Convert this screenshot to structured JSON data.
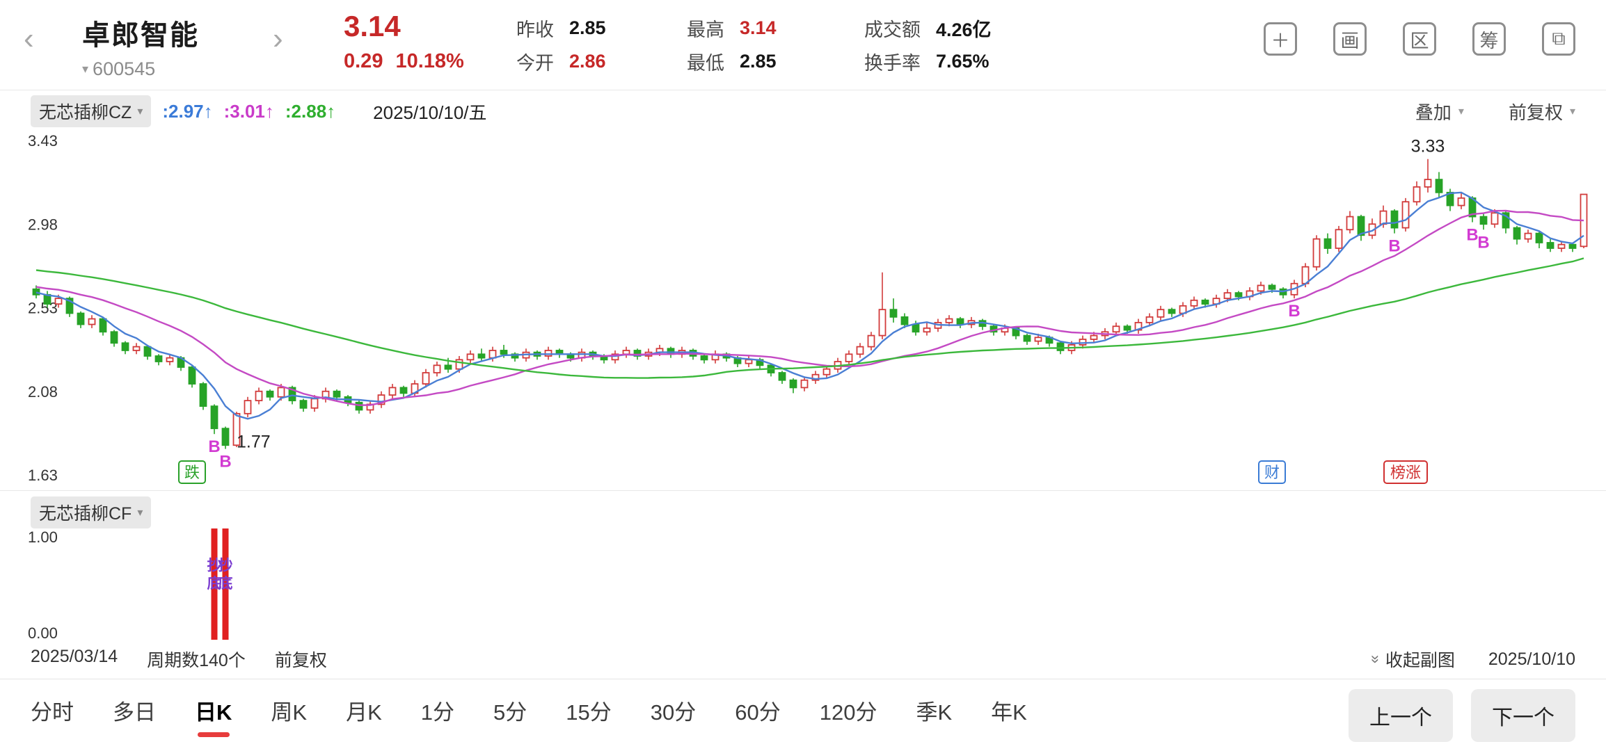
{
  "header": {
    "back_icon": "‹",
    "forward_icon": "›",
    "stock_name": "卓郎智能",
    "code_caret": "▾",
    "stock_code": "600545",
    "price": "3.14",
    "change": "0.29",
    "change_pct": "10.18%",
    "stats": [
      {
        "label": "昨收",
        "value": "2.85",
        "cls": "dark"
      },
      {
        "label": "今开",
        "value": "2.86",
        "cls": "red"
      },
      {
        "label": "最高",
        "value": "3.14",
        "cls": "red"
      },
      {
        "label": "最低",
        "value": "2.85",
        "cls": "dark"
      },
      {
        "label": "成交额",
        "value": "4.26亿",
        "cls": "dark"
      },
      {
        "label": "换手率",
        "value": "7.65%",
        "cls": "dark"
      }
    ],
    "tools": [
      {
        "name": "add",
        "glyph": "＋"
      },
      {
        "name": "draw",
        "glyph": "画"
      },
      {
        "name": "region",
        "glyph": "区"
      },
      {
        "name": "chips",
        "glyph": "筹"
      },
      {
        "name": "float-window",
        "glyph": "⧉"
      }
    ]
  },
  "indicator_bar": {
    "name": "无芯插柳CZ",
    "caret": "▾",
    "values": [
      {
        "text": ":2.97",
        "arrow": "↑",
        "color": "#3b7bd8"
      },
      {
        "text": ":3.01",
        "arrow": "↑",
        "color": "#c93bc9"
      },
      {
        "text": ":2.88",
        "arrow": "↑",
        "color": "#2fae2f"
      }
    ],
    "date": "2025/10/10/五",
    "overlay": "叠加",
    "adjust": "前复权"
  },
  "chart_data": {
    "type": "candlestick",
    "title": "无芯插柳CZ 主图 (日K)",
    "y_ticks": [
      "3.43",
      "2.98",
      "2.53",
      "2.08",
      "1.63"
    ],
    "y_max": 3.43,
    "y_min": 1.63,
    "period_count": 140,
    "date_start": "2025/03/14",
    "date_end": "2025/10/10",
    "up_color": "#d23b3b",
    "down_color": "#27a327",
    "ma_lines": [
      {
        "name": "ma-fast",
        "color": "#4a7fd4",
        "window": 5
      },
      {
        "name": "ma-mid",
        "color": "#c44ac4",
        "window": 15
      },
      {
        "name": "ma-slow",
        "color": "#3cb83c",
        "window": 45
      }
    ],
    "candles": [
      [
        2.63,
        2.65,
        2.58,
        2.6
      ],
      [
        2.6,
        2.62,
        2.53,
        2.55
      ],
      [
        2.55,
        2.6,
        2.53,
        2.58
      ],
      [
        2.58,
        2.59,
        2.48,
        2.5
      ],
      [
        2.5,
        2.51,
        2.42,
        2.44
      ],
      [
        2.44,
        2.49,
        2.42,
        2.47
      ],
      [
        2.47,
        2.48,
        2.38,
        2.4
      ],
      [
        2.4,
        2.41,
        2.32,
        2.34
      ],
      [
        2.34,
        2.35,
        2.28,
        2.3
      ],
      [
        2.3,
        2.34,
        2.28,
        2.32
      ],
      [
        2.32,
        2.33,
        2.25,
        2.27
      ],
      [
        2.27,
        2.28,
        2.22,
        2.24
      ],
      [
        2.24,
        2.28,
        2.22,
        2.26
      ],
      [
        2.26,
        2.27,
        2.19,
        2.21
      ],
      [
        2.21,
        2.22,
        2.1,
        2.12
      ],
      [
        2.12,
        2.13,
        1.98,
        2.0
      ],
      [
        2.0,
        2.01,
        1.85,
        1.88
      ],
      [
        1.88,
        1.89,
        1.77,
        1.79
      ],
      [
        1.79,
        1.97,
        1.78,
        1.96
      ],
      [
        1.96,
        2.05,
        1.94,
        2.03
      ],
      [
        2.03,
        2.1,
        2.01,
        2.08
      ],
      [
        2.08,
        2.09,
        2.03,
        2.05
      ],
      [
        2.05,
        2.12,
        2.03,
        2.1
      ],
      [
        2.1,
        2.11,
        2.01,
        2.03
      ],
      [
        2.03,
        2.04,
        1.97,
        1.99
      ],
      [
        1.99,
        2.06,
        1.97,
        2.04
      ],
      [
        2.04,
        2.1,
        2.02,
        2.08
      ],
      [
        2.08,
        2.09,
        2.03,
        2.05
      ],
      [
        2.05,
        2.06,
        2.0,
        2.02
      ],
      [
        2.02,
        2.03,
        1.96,
        1.98
      ],
      [
        1.98,
        2.03,
        1.96,
        2.01
      ],
      [
        2.01,
        2.08,
        1.99,
        2.06
      ],
      [
        2.06,
        2.12,
        2.04,
        2.1
      ],
      [
        2.1,
        2.11,
        2.05,
        2.07
      ],
      [
        2.07,
        2.14,
        2.05,
        2.12
      ],
      [
        2.12,
        2.2,
        2.1,
        2.18
      ],
      [
        2.18,
        2.24,
        2.16,
        2.22
      ],
      [
        2.22,
        2.26,
        2.18,
        2.2
      ],
      [
        2.2,
        2.27,
        2.18,
        2.25
      ],
      [
        2.25,
        2.3,
        2.23,
        2.28
      ],
      [
        2.28,
        2.31,
        2.24,
        2.26
      ],
      [
        2.26,
        2.32,
        2.24,
        2.3
      ],
      [
        2.3,
        2.33,
        2.26,
        2.28
      ],
      [
        2.28,
        2.29,
        2.24,
        2.26
      ],
      [
        2.26,
        2.31,
        2.24,
        2.29
      ],
      [
        2.29,
        2.3,
        2.25,
        2.27
      ],
      [
        2.27,
        2.32,
        2.25,
        2.3
      ],
      [
        2.3,
        2.31,
        2.26,
        2.28
      ],
      [
        2.28,
        2.29,
        2.24,
        2.26
      ],
      [
        2.26,
        2.31,
        2.24,
        2.29
      ],
      [
        2.29,
        2.3,
        2.25,
        2.27
      ],
      [
        2.27,
        2.28,
        2.23,
        2.25
      ],
      [
        2.25,
        2.3,
        2.23,
        2.28
      ],
      [
        2.28,
        2.32,
        2.26,
        2.3
      ],
      [
        2.3,
        2.31,
        2.25,
        2.27
      ],
      [
        2.27,
        2.31,
        2.25,
        2.29
      ],
      [
        2.29,
        2.33,
        2.27,
        2.31
      ],
      [
        2.31,
        2.32,
        2.26,
        2.28
      ],
      [
        2.28,
        2.32,
        2.26,
        2.3
      ],
      [
        2.3,
        2.31,
        2.25,
        2.27
      ],
      [
        2.27,
        2.28,
        2.23,
        2.25
      ],
      [
        2.25,
        2.3,
        2.23,
        2.28
      ],
      [
        2.28,
        2.29,
        2.24,
        2.26
      ],
      [
        2.26,
        2.27,
        2.21,
        2.23
      ],
      [
        2.23,
        2.27,
        2.21,
        2.25
      ],
      [
        2.25,
        2.26,
        2.2,
        2.22
      ],
      [
        2.22,
        2.23,
        2.16,
        2.18
      ],
      [
        2.18,
        2.19,
        2.12,
        2.14
      ],
      [
        2.14,
        2.15,
        2.07,
        2.1
      ],
      [
        2.1,
        2.16,
        2.08,
        2.14
      ],
      [
        2.14,
        2.19,
        2.12,
        2.17
      ],
      [
        2.17,
        2.22,
        2.15,
        2.2
      ],
      [
        2.2,
        2.26,
        2.18,
        2.24
      ],
      [
        2.24,
        2.3,
        2.22,
        2.28
      ],
      [
        2.28,
        2.34,
        2.26,
        2.32
      ],
      [
        2.32,
        2.4,
        2.3,
        2.38
      ],
      [
        2.38,
        2.72,
        2.36,
        2.52
      ],
      [
        2.52,
        2.58,
        2.45,
        2.48
      ],
      [
        2.48,
        2.5,
        2.42,
        2.44
      ],
      [
        2.44,
        2.46,
        2.38,
        2.4
      ],
      [
        2.4,
        2.45,
        2.38,
        2.42
      ],
      [
        2.42,
        2.47,
        2.4,
        2.45
      ],
      [
        2.45,
        2.49,
        2.43,
        2.47
      ],
      [
        2.47,
        2.48,
        2.42,
        2.44
      ],
      [
        2.44,
        2.48,
        2.42,
        2.46
      ],
      [
        2.46,
        2.47,
        2.41,
        2.43
      ],
      [
        2.43,
        2.44,
        2.38,
        2.4
      ],
      [
        2.4,
        2.44,
        2.38,
        2.42
      ],
      [
        2.42,
        2.43,
        2.36,
        2.38
      ],
      [
        2.38,
        2.39,
        2.33,
        2.35
      ],
      [
        2.35,
        2.39,
        2.33,
        2.37
      ],
      [
        2.37,
        2.38,
        2.32,
        2.34
      ],
      [
        2.34,
        2.35,
        2.28,
        2.3
      ],
      [
        2.3,
        2.35,
        2.28,
        2.33
      ],
      [
        2.33,
        2.38,
        2.31,
        2.36
      ],
      [
        2.36,
        2.4,
        2.34,
        2.38
      ],
      [
        2.38,
        2.42,
        2.36,
        2.4
      ],
      [
        2.4,
        2.45,
        2.38,
        2.43
      ],
      [
        2.43,
        2.44,
        2.39,
        2.41
      ],
      [
        2.41,
        2.47,
        2.39,
        2.45
      ],
      [
        2.45,
        2.5,
        2.43,
        2.48
      ],
      [
        2.48,
        2.54,
        2.46,
        2.52
      ],
      [
        2.52,
        2.53,
        2.48,
        2.5
      ],
      [
        2.5,
        2.56,
        2.48,
        2.54
      ],
      [
        2.54,
        2.59,
        2.52,
        2.57
      ],
      [
        2.57,
        2.58,
        2.53,
        2.55
      ],
      [
        2.55,
        2.6,
        2.53,
        2.58
      ],
      [
        2.58,
        2.63,
        2.56,
        2.61
      ],
      [
        2.61,
        2.62,
        2.57,
        2.59
      ],
      [
        2.59,
        2.64,
        2.57,
        2.62
      ],
      [
        2.62,
        2.67,
        2.6,
        2.65
      ],
      [
        2.65,
        2.66,
        2.61,
        2.63
      ],
      [
        2.63,
        2.64,
        2.58,
        2.6
      ],
      [
        2.6,
        2.68,
        2.58,
        2.66
      ],
      [
        2.66,
        2.77,
        2.64,
        2.75
      ],
      [
        2.75,
        2.92,
        2.73,
        2.9
      ],
      [
        2.9,
        2.93,
        2.82,
        2.85
      ],
      [
        2.85,
        2.97,
        2.83,
        2.95
      ],
      [
        2.95,
        3.05,
        2.93,
        3.02
      ],
      [
        3.02,
        3.03,
        2.89,
        2.92
      ],
      [
        2.92,
        3.01,
        2.9,
        2.98
      ],
      [
        2.98,
        3.08,
        2.96,
        3.05
      ],
      [
        3.05,
        3.06,
        2.93,
        2.96
      ],
      [
        2.96,
        3.12,
        2.94,
        3.1
      ],
      [
        3.1,
        3.21,
        3.08,
        3.18
      ],
      [
        3.18,
        3.33,
        3.15,
        3.22
      ],
      [
        3.22,
        3.26,
        3.12,
        3.15
      ],
      [
        3.15,
        3.17,
        3.05,
        3.08
      ],
      [
        3.08,
        3.15,
        3.06,
        3.12
      ],
      [
        3.12,
        3.13,
        2.99,
        3.02
      ],
      [
        3.02,
        3.04,
        2.95,
        2.98
      ],
      [
        2.98,
        3.06,
        2.96,
        3.04
      ],
      [
        3.04,
        3.05,
        2.93,
        2.96
      ],
      [
        2.96,
        2.97,
        2.87,
        2.9
      ],
      [
        2.9,
        2.95,
        2.88,
        2.93
      ],
      [
        2.93,
        2.94,
        2.85,
        2.88
      ],
      [
        2.88,
        2.9,
        2.83,
        2.85
      ],
      [
        2.85,
        2.89,
        2.83,
        2.87
      ],
      [
        2.87,
        2.88,
        2.83,
        2.85
      ],
      [
        2.86,
        3.14,
        2.85,
        3.14
      ]
    ],
    "annotations": {
      "high_label": {
        "index": 125,
        "text": "3.33"
      },
      "low_label": {
        "index": 17,
        "text": "1.77"
      },
      "b_marker_text": "B",
      "b_marker_color": "#d23bd2",
      "b_markers": [
        {
          "index": 16
        },
        {
          "index": 17
        },
        {
          "index": 113
        },
        {
          "index": 122
        },
        {
          "index": 129
        },
        {
          "index": 130
        }
      ],
      "badges": [
        {
          "index": 14,
          "text": "跌",
          "color": "#2aa12a"
        },
        {
          "index": 111,
          "text": "财",
          "color": "#3a7bd5"
        },
        {
          "index": 123,
          "text": "榜涨",
          "color": "#d03030"
        }
      ]
    }
  },
  "subchart": {
    "name": "无芯插柳CF",
    "caret": "▾",
    "y_ticks": [
      "1.00",
      "0.00"
    ],
    "y_max": 1.0,
    "y_min": 0.0,
    "bar_color": "#e02020",
    "bars": [
      {
        "index": 16,
        "value": 1.0
      },
      {
        "index": 17,
        "value": 1.0
      }
    ],
    "signal_color": "#7a3bd0",
    "signals": [
      {
        "index": 16,
        "text": "抄底"
      },
      {
        "index": 17,
        "text": "抄底"
      }
    ]
  },
  "info_row": {
    "date_start": "2025/03/14",
    "period_text": "周期数140个",
    "adjust": "前复权",
    "collapse_icon": "»",
    "collapse_label": "收起副图",
    "date_end": "2025/10/10"
  },
  "tabbar": {
    "tabs": [
      {
        "label": "分时",
        "active": false
      },
      {
        "label": "多日",
        "active": false
      },
      {
        "label": "日K",
        "active": true
      },
      {
        "label": "周K",
        "active": false
      },
      {
        "label": "月K",
        "active": false
      },
      {
        "label": "1分",
        "active": false
      },
      {
        "label": "5分",
        "active": false
      },
      {
        "label": "15分",
        "active": false
      },
      {
        "label": "30分",
        "active": false
      },
      {
        "label": "60分",
        "active": false
      },
      {
        "label": "120分",
        "active": false
      },
      {
        "label": "季K",
        "active": false
      },
      {
        "label": "年K",
        "active": false
      }
    ],
    "prev_label": "上一个",
    "next_label": "下一个"
  }
}
